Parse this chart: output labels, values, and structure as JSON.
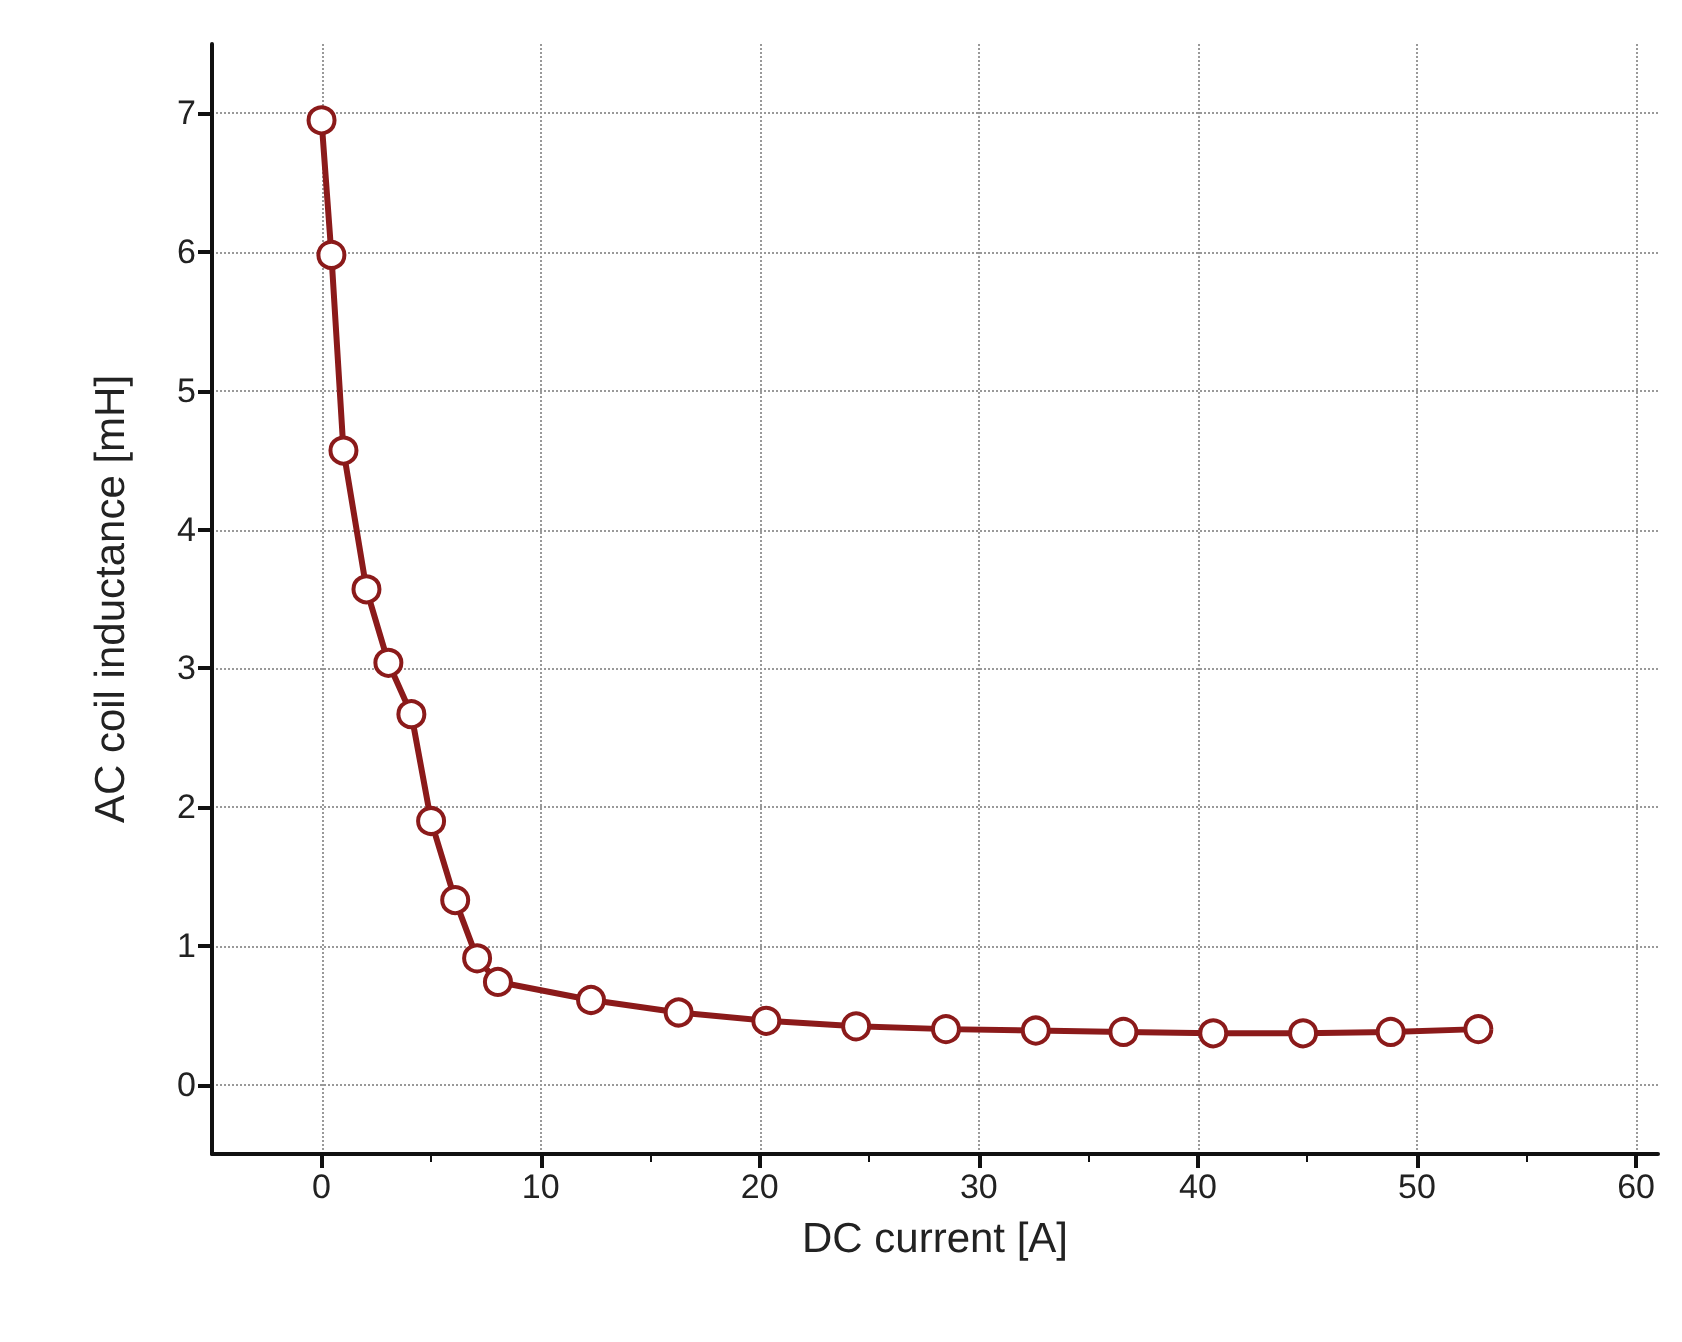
{
  "chart_data": {
    "type": "line",
    "xlabel": "DC current [A]",
    "ylabel": "AC coil inductance [mH]",
    "xlim": [
      -5,
      61
    ],
    "xticks": [
      0,
      10,
      20,
      30,
      40,
      50,
      60
    ],
    "ylim": [
      -0.5,
      7.5
    ],
    "yticks": [
      0,
      1,
      2,
      3,
      4,
      5,
      6,
      7
    ],
    "grid": true,
    "marker": "circle",
    "line_style": "solid",
    "series": [
      {
        "color": "#8b1a1a",
        "x": [
          0,
          0.45,
          1,
          2.05,
          3.05,
          4.1,
          5,
          6.1,
          7.1,
          8.05,
          12.3,
          16.3,
          20.3,
          24.4,
          28.5,
          32.6,
          36.6,
          40.7,
          44.8,
          48.8,
          52.8
        ],
        "values": [
          6.95,
          5.98,
          4.57,
          3.57,
          3.04,
          2.67,
          1.9,
          1.33,
          0.91,
          0.74,
          0.61,
          0.52,
          0.46,
          0.42,
          0.4,
          0.39,
          0.38,
          0.37,
          0.37,
          0.38,
          0.4
        ]
      }
    ]
  }
}
